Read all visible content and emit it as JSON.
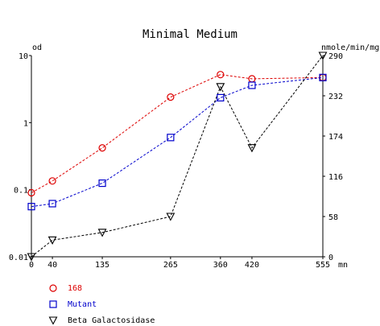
{
  "chart_data": {
    "type": "line",
    "title": "Minimal Medium",
    "xlabel": "mn",
    "ylabel_left": "od",
    "ylabel_right": "nmole/min/mg",
    "x": [
      0,
      40,
      135,
      265,
      360,
      420,
      555
    ],
    "x_ticks": [
      "0",
      "40",
      "135",
      "265",
      "360",
      "420",
      "555"
    ],
    "xlim": [
      0,
      555
    ],
    "y_left_scale": "log",
    "y_left_lim": [
      0.01,
      10
    ],
    "y_left_ticks": [
      10,
      1,
      0.1,
      0.01
    ],
    "y_left_tick_labels": [
      "10",
      "1",
      "0.1",
      "0.01"
    ],
    "y_right_lim": [
      0,
      290
    ],
    "y_right_ticks": [
      290,
      232,
      174,
      116,
      58,
      0
    ],
    "y_right_tick_labels": [
      "290",
      "232",
      "174",
      "116",
      "58",
      "0"
    ],
    "grid": false,
    "legend_placement": "bottom-left",
    "series": [
      {
        "name": "168",
        "axis": "left",
        "color": "#dd0000",
        "marker": "circle",
        "line": "dashed",
        "values": [
          0.09,
          0.135,
          0.42,
          2.4,
          5.2,
          4.5,
          4.7
        ]
      },
      {
        "name": "Mutant",
        "axis": "left",
        "color": "#0000cc",
        "marker": "square",
        "line": "dashed",
        "values": [
          0.056,
          0.062,
          0.125,
          0.6,
          2.35,
          3.6,
          4.7
        ]
      },
      {
        "name": "Beta Galactosidase",
        "axis": "right",
        "color": "#000000",
        "marker": "triangle-down",
        "line": "dashed",
        "values": [
          0,
          24,
          35,
          58,
          245,
          157,
          290
        ]
      }
    ]
  }
}
